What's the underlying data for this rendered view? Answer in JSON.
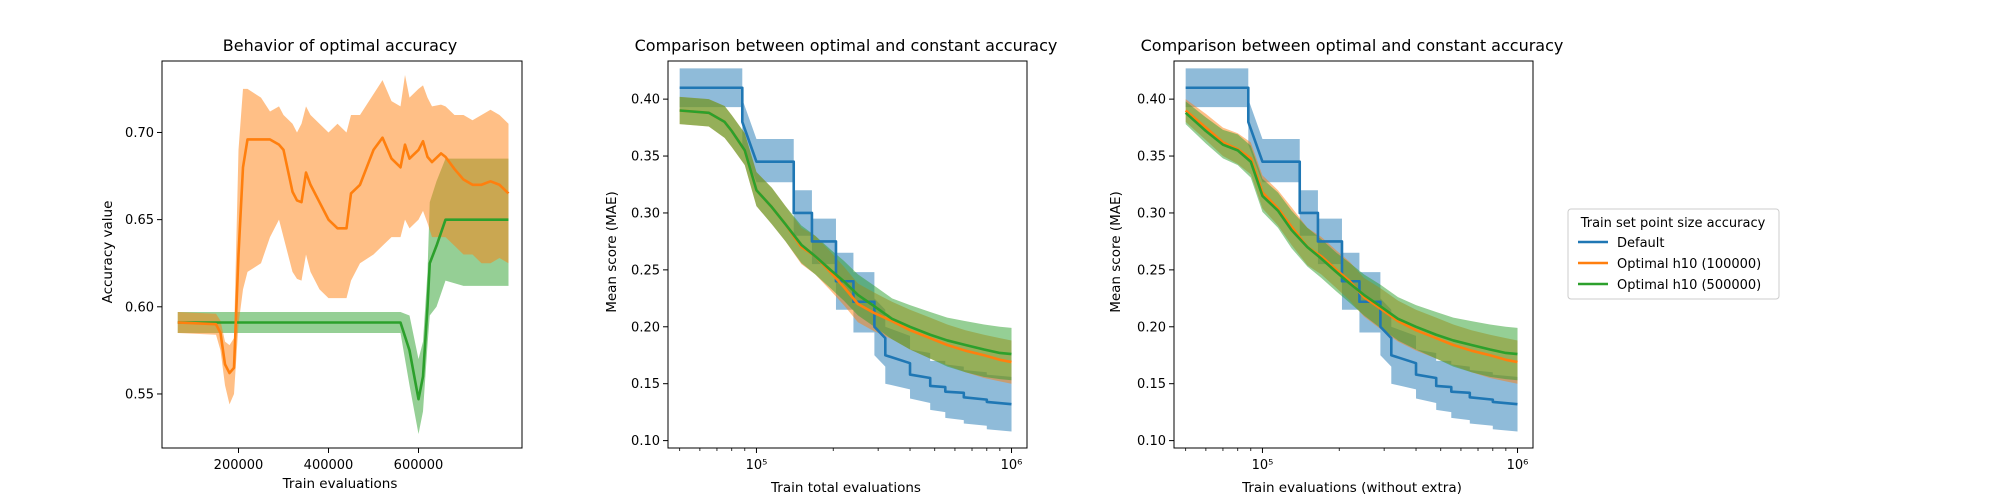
{
  "colors": {
    "Default": "#1f77b4",
    "Optimal h10 (100000)": "#ff7f0e",
    "Optimal h10 (500000)": "#2ca02c"
  },
  "legend": {
    "title": "Train set point size accuracy",
    "placement": "right",
    "entries": [
      "Default",
      "Optimal h10 (100000)",
      "Optimal h10 (500000)"
    ]
  },
  "chart_data": [
    {
      "type": "line",
      "title": "Behavior of optimal accuracy",
      "xlabel": "Train evaluations",
      "ylabel": "Accuracy value",
      "xlim": [
        30000,
        830000
      ],
      "ylim": [
        0.519,
        0.741
      ],
      "xticks": [
        200000,
        400000,
        600000
      ],
      "xtick_labels": [
        "200000",
        "400000",
        "600000"
      ],
      "yticks": [
        0.55,
        0.6,
        0.65,
        0.7
      ],
      "ytick_labels": [
        "0.55",
        "0.60",
        "0.65",
        "0.70"
      ],
      "series": [
        {
          "name": "Optimal h10 (500000)",
          "x": [
            65000,
            200000,
            300000,
            400000,
            500000,
            560000,
            580000,
            600000,
            610000,
            620000,
            625000,
            640000,
            660000,
            700000,
            750000,
            800000
          ],
          "y": [
            0.591,
            0.591,
            0.591,
            0.591,
            0.591,
            0.591,
            0.575,
            0.547,
            0.56,
            0.6,
            0.625,
            0.635,
            0.65,
            0.65,
            0.65,
            0.65
          ],
          "lower": [
            0.585,
            0.585,
            0.585,
            0.585,
            0.585,
            0.585,
            0.555,
            0.527,
            0.54,
            0.578,
            0.595,
            0.6,
            0.615,
            0.612,
            0.612,
            0.612
          ],
          "upper": [
            0.597,
            0.597,
            0.597,
            0.597,
            0.597,
            0.597,
            0.595,
            0.57,
            0.58,
            0.62,
            0.66,
            0.672,
            0.685,
            0.685,
            0.685,
            0.685
          ]
        },
        {
          "name": "Optimal h10 (100000)",
          "x": [
            65000,
            150000,
            160000,
            170000,
            180000,
            190000,
            200000,
            210000,
            220000,
            250000,
            270000,
            290000,
            300000,
            320000,
            330000,
            340000,
            350000,
            360000,
            380000,
            400000,
            420000,
            440000,
            450000,
            470000,
            500000,
            520000,
            540000,
            560000,
            570000,
            580000,
            600000,
            610000,
            620000,
            630000,
            650000,
            660000,
            680000,
            700000,
            720000,
            740000,
            760000,
            780000,
            800000
          ],
          "y": [
            0.591,
            0.59,
            0.585,
            0.567,
            0.562,
            0.565,
            0.63,
            0.68,
            0.696,
            0.696,
            0.696,
            0.693,
            0.69,
            0.666,
            0.661,
            0.66,
            0.677,
            0.67,
            0.66,
            0.65,
            0.645,
            0.645,
            0.665,
            0.67,
            0.69,
            0.697,
            0.685,
            0.68,
            0.693,
            0.685,
            0.69,
            0.695,
            0.686,
            0.683,
            0.688,
            0.686,
            0.679,
            0.673,
            0.67,
            0.67,
            0.672,
            0.67,
            0.665
          ],
          "lower": [
            0.585,
            0.584,
            0.575,
            0.555,
            0.544,
            0.55,
            0.59,
            0.61,
            0.62,
            0.625,
            0.64,
            0.65,
            0.64,
            0.62,
            0.616,
            0.615,
            0.63,
            0.62,
            0.61,
            0.605,
            0.605,
            0.605,
            0.615,
            0.625,
            0.63,
            0.635,
            0.64,
            0.64,
            0.65,
            0.645,
            0.65,
            0.655,
            0.648,
            0.64,
            0.64,
            0.64,
            0.635,
            0.63,
            0.63,
            0.625,
            0.625,
            0.628,
            0.625
          ],
          "upper": [
            0.597,
            0.596,
            0.592,
            0.58,
            0.578,
            0.582,
            0.69,
            0.725,
            0.725,
            0.72,
            0.712,
            0.715,
            0.71,
            0.705,
            0.7,
            0.705,
            0.715,
            0.71,
            0.705,
            0.7,
            0.705,
            0.7,
            0.71,
            0.71,
            0.722,
            0.73,
            0.718,
            0.715,
            0.733,
            0.72,
            0.725,
            0.727,
            0.72,
            0.715,
            0.716,
            0.715,
            0.71,
            0.71,
            0.707,
            0.71,
            0.713,
            0.71,
            0.705
          ]
        }
      ]
    },
    {
      "type": "line",
      "title": "Comparison between optimal and constant accuracy",
      "xlabel": "Train total evaluations",
      "ylabel": "Mean score (MAE)",
      "xscale": "log",
      "xlim": [
        45000,
        1150000
      ],
      "ylim": [
        0.0935,
        0.4335
      ],
      "xticks": [
        100000,
        1000000
      ],
      "xtick_labels": [
        "10⁵",
        "10⁶"
      ],
      "yticks": [
        0.1,
        0.15,
        0.2,
        0.25,
        0.3,
        0.35,
        0.4
      ],
      "ytick_labels": [
        "0.10",
        "0.15",
        "0.20",
        "0.25",
        "0.30",
        "0.35",
        "0.40"
      ],
      "series": [
        {
          "name": "Default",
          "x": [
            50000,
            88000,
            88000,
            100000,
            100000,
            140000,
            140000,
            165000,
            165000,
            205000,
            205000,
            240000,
            240000,
            290000,
            290000,
            320000,
            320000,
            400000,
            400000,
            480000,
            480000,
            550000,
            550000,
            650000,
            650000,
            800000,
            800000,
            1000000
          ],
          "y": [
            0.41,
            0.41,
            0.38,
            0.345,
            0.345,
            0.345,
            0.3,
            0.3,
            0.275,
            0.275,
            0.24,
            0.24,
            0.222,
            0.222,
            0.2,
            0.19,
            0.175,
            0.168,
            0.158,
            0.155,
            0.148,
            0.147,
            0.143,
            0.142,
            0.138,
            0.136,
            0.134,
            0.132
          ],
          "lower": [
            0.393,
            0.393,
            0.36,
            0.327,
            0.327,
            0.327,
            0.28,
            0.28,
            0.255,
            0.255,
            0.215,
            0.215,
            0.195,
            0.195,
            0.175,
            0.165,
            0.15,
            0.145,
            0.137,
            0.133,
            0.127,
            0.125,
            0.12,
            0.118,
            0.115,
            0.113,
            0.11,
            0.108
          ],
          "upper": [
            0.427,
            0.427,
            0.4,
            0.365,
            0.365,
            0.365,
            0.32,
            0.32,
            0.295,
            0.295,
            0.265,
            0.265,
            0.248,
            0.248,
            0.225,
            0.215,
            0.2,
            0.192,
            0.18,
            0.177,
            0.17,
            0.17,
            0.167,
            0.165,
            0.162,
            0.16,
            0.158,
            0.156
          ]
        },
        {
          "name": "Optimal h10 (100000)",
          "x": [
            50000,
            65000,
            75000,
            80000,
            90000,
            100000,
            115000,
            130000,
            150000,
            170000,
            195000,
            220000,
            250000,
            290000,
            340000,
            400000,
            480000,
            560000,
            660000,
            780000,
            900000,
            1000000
          ],
          "y": [
            0.39,
            0.388,
            0.38,
            0.372,
            0.355,
            0.32,
            0.305,
            0.29,
            0.27,
            0.262,
            0.248,
            0.235,
            0.22,
            0.212,
            0.205,
            0.197,
            0.19,
            0.184,
            0.179,
            0.175,
            0.171,
            0.169
          ],
          "lower": [
            0.378,
            0.376,
            0.366,
            0.358,
            0.342,
            0.306,
            0.29,
            0.275,
            0.255,
            0.246,
            0.232,
            0.219,
            0.204,
            0.196,
            0.189,
            0.18,
            0.172,
            0.166,
            0.16,
            0.155,
            0.152,
            0.15
          ],
          "upper": [
            0.402,
            0.4,
            0.394,
            0.386,
            0.37,
            0.336,
            0.322,
            0.306,
            0.287,
            0.28,
            0.266,
            0.253,
            0.238,
            0.23,
            0.222,
            0.215,
            0.208,
            0.202,
            0.197,
            0.193,
            0.19,
            0.188
          ]
        },
        {
          "name": "Optimal h10 (500000)",
          "x": [
            50000,
            65000,
            75000,
            80000,
            90000,
            100000,
            115000,
            130000,
            150000,
            170000,
            195000,
            220000,
            250000,
            290000,
            340000,
            400000,
            480000,
            560000,
            660000,
            780000,
            900000,
            1000000
          ],
          "y": [
            0.39,
            0.388,
            0.38,
            0.372,
            0.355,
            0.32,
            0.305,
            0.29,
            0.272,
            0.262,
            0.25,
            0.24,
            0.228,
            0.218,
            0.207,
            0.2,
            0.193,
            0.188,
            0.184,
            0.18,
            0.177,
            0.176
          ],
          "lower": [
            0.378,
            0.376,
            0.366,
            0.358,
            0.342,
            0.306,
            0.29,
            0.275,
            0.256,
            0.246,
            0.234,
            0.223,
            0.21,
            0.2,
            0.189,
            0.18,
            0.172,
            0.165,
            0.16,
            0.156,
            0.154,
            0.153
          ],
          "upper": [
            0.402,
            0.4,
            0.394,
            0.386,
            0.37,
            0.336,
            0.322,
            0.306,
            0.289,
            0.28,
            0.268,
            0.258,
            0.246,
            0.236,
            0.225,
            0.219,
            0.213,
            0.208,
            0.205,
            0.202,
            0.2,
            0.199
          ]
        }
      ]
    },
    {
      "type": "line",
      "title": "Comparison between optimal and constant accuracy",
      "xlabel": "Train evaluations (without extra)",
      "ylabel": "Mean score (MAE)",
      "xscale": "log",
      "xlim": [
        45000,
        1150000
      ],
      "ylim": [
        0.0935,
        0.4335
      ],
      "xticks": [
        100000,
        1000000
      ],
      "xtick_labels": [
        "10⁵",
        "10⁶"
      ],
      "yticks": [
        0.1,
        0.15,
        0.2,
        0.25,
        0.3,
        0.35,
        0.4
      ],
      "ytick_labels": [
        "0.10",
        "0.15",
        "0.20",
        "0.25",
        "0.30",
        "0.35",
        "0.40"
      ],
      "series": [
        {
          "name": "Default",
          "x": [
            50000,
            88000,
            88000,
            100000,
            100000,
            140000,
            140000,
            165000,
            165000,
            205000,
            205000,
            240000,
            240000,
            290000,
            290000,
            320000,
            320000,
            400000,
            400000,
            480000,
            480000,
            550000,
            550000,
            650000,
            650000,
            800000,
            800000,
            1000000
          ],
          "y": [
            0.41,
            0.41,
            0.38,
            0.345,
            0.345,
            0.345,
            0.3,
            0.3,
            0.275,
            0.275,
            0.24,
            0.24,
            0.222,
            0.222,
            0.2,
            0.19,
            0.175,
            0.168,
            0.158,
            0.155,
            0.148,
            0.147,
            0.143,
            0.142,
            0.138,
            0.136,
            0.134,
            0.132
          ],
          "lower": [
            0.393,
            0.393,
            0.36,
            0.327,
            0.327,
            0.327,
            0.28,
            0.28,
            0.255,
            0.255,
            0.215,
            0.215,
            0.195,
            0.195,
            0.175,
            0.165,
            0.15,
            0.145,
            0.137,
            0.133,
            0.127,
            0.125,
            0.12,
            0.118,
            0.115,
            0.113,
            0.11,
            0.108
          ],
          "upper": [
            0.427,
            0.427,
            0.4,
            0.365,
            0.365,
            0.365,
            0.32,
            0.32,
            0.295,
            0.295,
            0.265,
            0.265,
            0.248,
            0.248,
            0.225,
            0.215,
            0.2,
            0.192,
            0.18,
            0.177,
            0.17,
            0.17,
            0.167,
            0.165,
            0.162,
            0.16,
            0.158,
            0.156
          ]
        },
        {
          "name": "Optimal h10 (100000)",
          "x": [
            50000,
            60000,
            70000,
            80000,
            90000,
            100000,
            115000,
            130000,
            150000,
            170000,
            195000,
            220000,
            250000,
            290000,
            340000,
            400000,
            480000,
            560000,
            660000,
            780000,
            900000,
            1000000
          ],
          "y": [
            0.39,
            0.375,
            0.362,
            0.356,
            0.348,
            0.318,
            0.304,
            0.288,
            0.27,
            0.262,
            0.25,
            0.24,
            0.226,
            0.216,
            0.205,
            0.197,
            0.19,
            0.184,
            0.179,
            0.175,
            0.171,
            0.169
          ],
          "lower": [
            0.38,
            0.364,
            0.35,
            0.343,
            0.334,
            0.304,
            0.289,
            0.272,
            0.254,
            0.246,
            0.234,
            0.223,
            0.209,
            0.198,
            0.187,
            0.179,
            0.172,
            0.166,
            0.16,
            0.155,
            0.152,
            0.15
          ],
          "upper": [
            0.4,
            0.387,
            0.375,
            0.37,
            0.362,
            0.333,
            0.32,
            0.305,
            0.287,
            0.279,
            0.267,
            0.257,
            0.243,
            0.234,
            0.223,
            0.215,
            0.208,
            0.202,
            0.197,
            0.193,
            0.19,
            0.188
          ]
        },
        {
          "name": "Optimal h10 (500000)",
          "x": [
            50000,
            60000,
            70000,
            80000,
            90000,
            100000,
            115000,
            130000,
            150000,
            170000,
            195000,
            220000,
            250000,
            290000,
            340000,
            400000,
            480000,
            560000,
            660000,
            780000,
            900000,
            1000000
          ],
          "y": [
            0.388,
            0.372,
            0.36,
            0.355,
            0.345,
            0.315,
            0.302,
            0.285,
            0.27,
            0.26,
            0.248,
            0.238,
            0.228,
            0.218,
            0.207,
            0.2,
            0.193,
            0.188,
            0.184,
            0.18,
            0.177,
            0.176
          ],
          "lower": [
            0.378,
            0.361,
            0.348,
            0.342,
            0.331,
            0.301,
            0.287,
            0.269,
            0.253,
            0.243,
            0.231,
            0.221,
            0.21,
            0.199,
            0.188,
            0.18,
            0.172,
            0.165,
            0.16,
            0.156,
            0.154,
            0.153
          ],
          "upper": [
            0.398,
            0.384,
            0.373,
            0.369,
            0.359,
            0.33,
            0.318,
            0.302,
            0.287,
            0.277,
            0.265,
            0.256,
            0.246,
            0.237,
            0.226,
            0.219,
            0.213,
            0.208,
            0.205,
            0.202,
            0.2,
            0.199
          ]
        }
      ]
    }
  ]
}
